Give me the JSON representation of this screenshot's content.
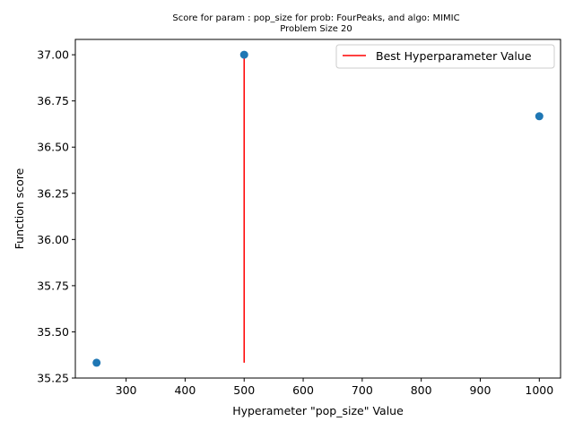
{
  "chart_data": {
    "type": "scatter",
    "title_line1": "Score for param : pop_size for prob: FourPeaks, and algo: MIMIC",
    "title_line2": "Problem Size 20",
    "xlabel": "Hyperameter \"pop_size\" Value",
    "ylabel": "Function score",
    "xlim": [
      214,
      1036
    ],
    "ylim": [
      35.25,
      37.083
    ],
    "xticks": [
      300,
      400,
      500,
      600,
      700,
      800,
      900,
      1000
    ],
    "xtick_labels": [
      "300",
      "400",
      "500",
      "600",
      "700",
      "800",
      "900",
      "1000"
    ],
    "yticks": [
      35.25,
      35.5,
      35.75,
      36.0,
      36.25,
      36.5,
      36.75,
      37.0
    ],
    "ytick_labels": [
      "35.25",
      "35.50",
      "35.75",
      "36.00",
      "36.25",
      "36.50",
      "36.75",
      "37.00"
    ],
    "points": [
      {
        "x": 250,
        "y": 35.333
      },
      {
        "x": 500,
        "y": 37.0
      },
      {
        "x": 1000,
        "y": 36.667
      }
    ],
    "best_line": {
      "x": 500,
      "y_from": 35.333,
      "y_to": 37.0
    },
    "legend": {
      "label": "Best Hyperparameter Value",
      "placement": "upper-right"
    },
    "grid": false,
    "colors": {
      "points": "#1f77b4",
      "best_line": "#ff0000",
      "axes": "#000000",
      "legend_border": "#cccccc"
    }
  }
}
